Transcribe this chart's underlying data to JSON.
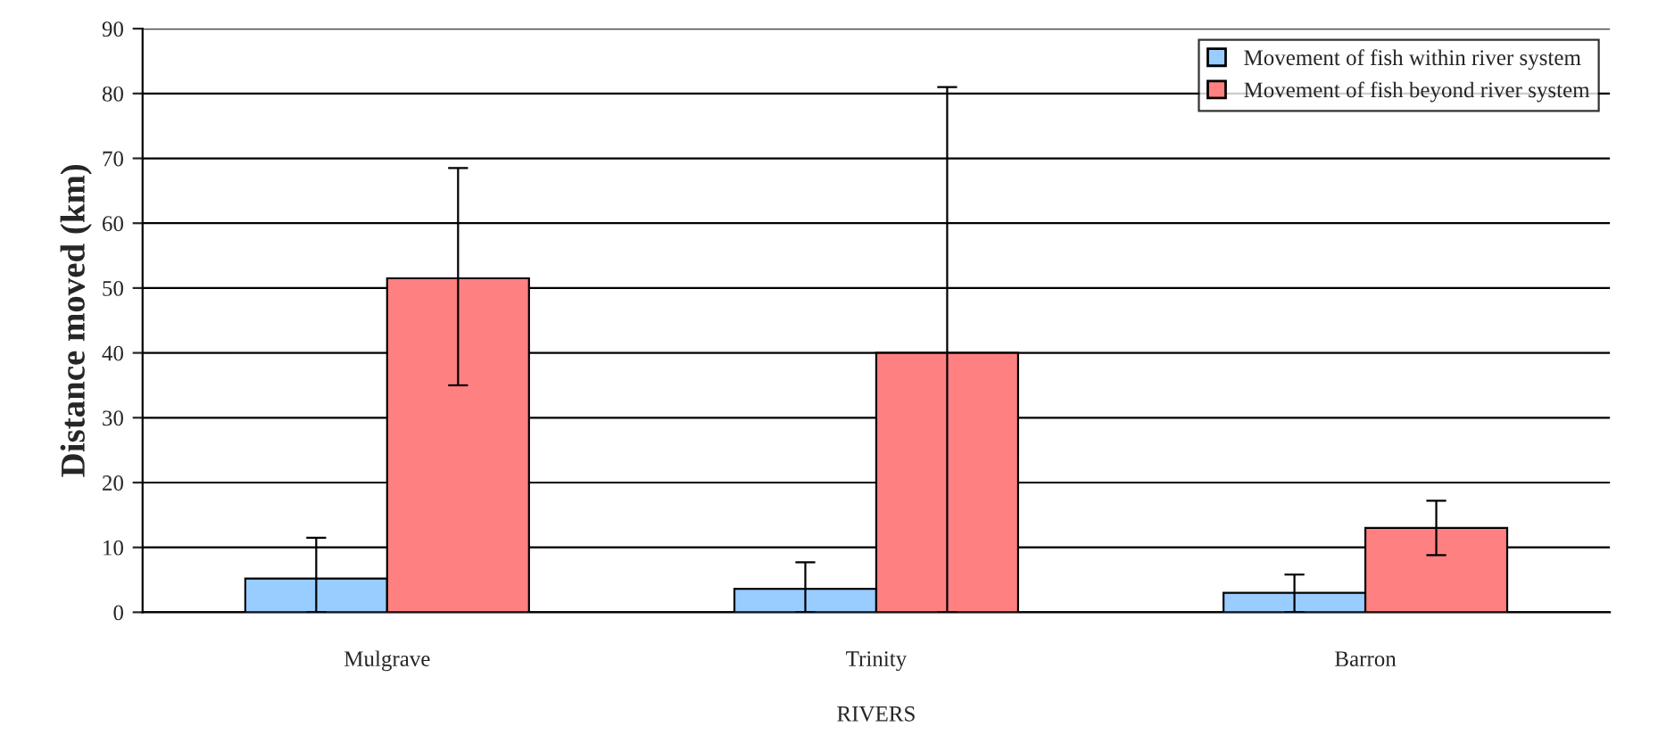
{
  "chart_data": {
    "type": "bar",
    "xlabel": "RIVERS",
    "ylabel": "Distance moved (km)",
    "categories": [
      "Mulgrave",
      "Trinity",
      "Barron"
    ],
    "series": [
      {
        "name": "Movement of fish within river system",
        "color": "#99ccff",
        "values": [
          5.2,
          3.6,
          3.0
        ],
        "errors": [
          [
            0,
            11.5
          ],
          [
            0,
            7.7
          ],
          [
            0,
            5.8
          ]
        ]
      },
      {
        "name": "Movement of fish beyond river system",
        "color": "#ff8080",
        "values": [
          51.5,
          40.0,
          13.0
        ],
        "errors": [
          [
            35.0,
            68.5
          ],
          [
            0,
            81.0
          ],
          [
            8.8,
            17.2
          ]
        ]
      }
    ],
    "ylim": [
      0,
      90
    ],
    "yticks": [
      0,
      10,
      20,
      30,
      40,
      50,
      60,
      70,
      80,
      90
    ],
    "grid": "y",
    "legend": "top right"
  }
}
